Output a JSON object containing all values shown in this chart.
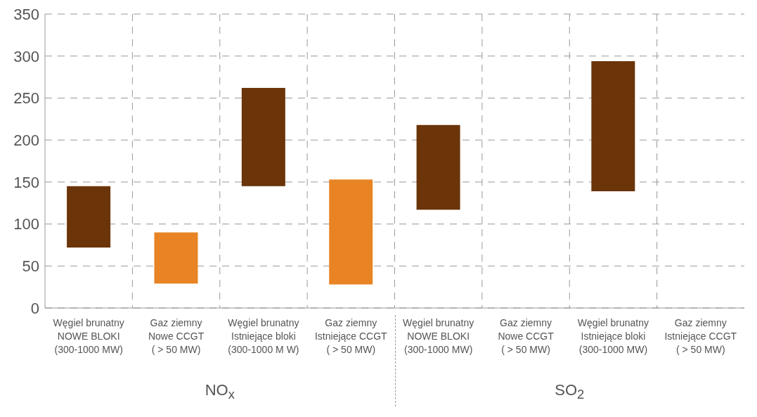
{
  "chart_data": {
    "type": "bar",
    "categories": [
      "Węgiel brunatny\nNOWE BLOKI\n(300-1000 MW)",
      "Gaz ziemny\nNowe CCGT\n( > 50 MW)",
      "Węgiel brunatny\nIstniejące bloki\n(300-1000 M W)",
      "Gaz ziemny\nIstniejące CCGT\n( > 50 MW)",
      "Węgiel brunatny\nNOWE BLOKI\n(300-1000 MW)",
      "Gaz ziemny\nNowe CCGT\n( > 50 MW)",
      "Węgiel brunatny\nIstniejące bloki\n(300-1000 MW)",
      "Gaz ziemny\nIstniejące CCGT\n( > 50 MW)"
    ],
    "base": [
      72,
      29,
      145,
      28,
      117,
      null,
      139,
      null
    ],
    "values": [
      73,
      61,
      117,
      125,
      101,
      null,
      155,
      null
    ],
    "colors": [
      "#6b3409",
      "#e88424",
      "#6b3409",
      "#e88424",
      "#6b3409",
      null,
      "#6b3409",
      null
    ],
    "ylim": [
      0,
      350
    ],
    "yticks": [
      0,
      50,
      100,
      150,
      200,
      250,
      300,
      350
    ],
    "grid": true,
    "annotations": [
      "NO$_{x}$",
      "SO$_{2}$"
    ]
  }
}
